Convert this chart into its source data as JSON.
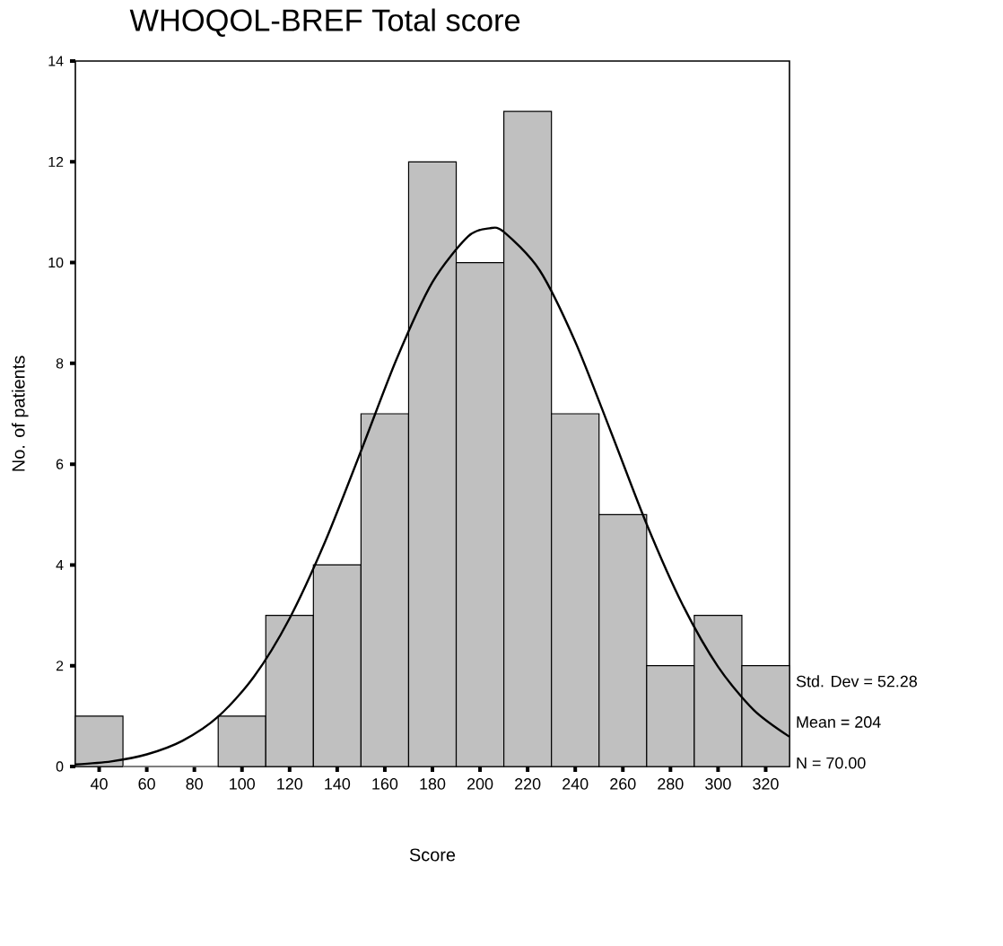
{
  "chart_data": {
    "type": "histogram",
    "title": "WHOQOL-BREF Total score",
    "xlabel": "Score",
    "ylabel": "No. of patients",
    "bins": [
      30,
      50,
      70,
      90,
      110,
      130,
      150,
      170,
      190,
      210,
      230,
      250,
      270,
      290,
      310,
      330
    ],
    "values": [
      1,
      0,
      0,
      1,
      3,
      4,
      7,
      12,
      10,
      13,
      7,
      5,
      2,
      3,
      2
    ],
    "color": "#c0c0c0",
    "series": [
      {
        "type": "line",
        "color": "#000000",
        "x": [
          30,
          45,
          60,
          75,
          90,
          105,
          120,
          135,
          150,
          165,
          180,
          195,
          204,
          210,
          225,
          240,
          255,
          270,
          285,
          300,
          315,
          330
        ],
        "values": [
          0.04,
          0.1,
          0.24,
          0.51,
          0.99,
          1.78,
          2.94,
          4.47,
          6.26,
          8.09,
          9.61,
          10.52,
          10.68,
          10.61,
          9.85,
          8.43,
          6.64,
          4.81,
          3.22,
          1.98,
          1.12,
          0.59
        ]
      }
    ],
    "xlim": [
      30,
      330
    ],
    "ylim": [
      0,
      14
    ],
    "xticks": [
      40,
      60,
      80,
      100,
      120,
      140,
      160,
      180,
      200,
      220,
      240,
      260,
      280,
      300,
      320
    ],
    "yticks": [
      0,
      2,
      4,
      6,
      8,
      10,
      12,
      14
    ],
    "annotations": [
      "Std. Dev = 52.28",
      "Mean = 204",
      "N = 70.00"
    ]
  }
}
